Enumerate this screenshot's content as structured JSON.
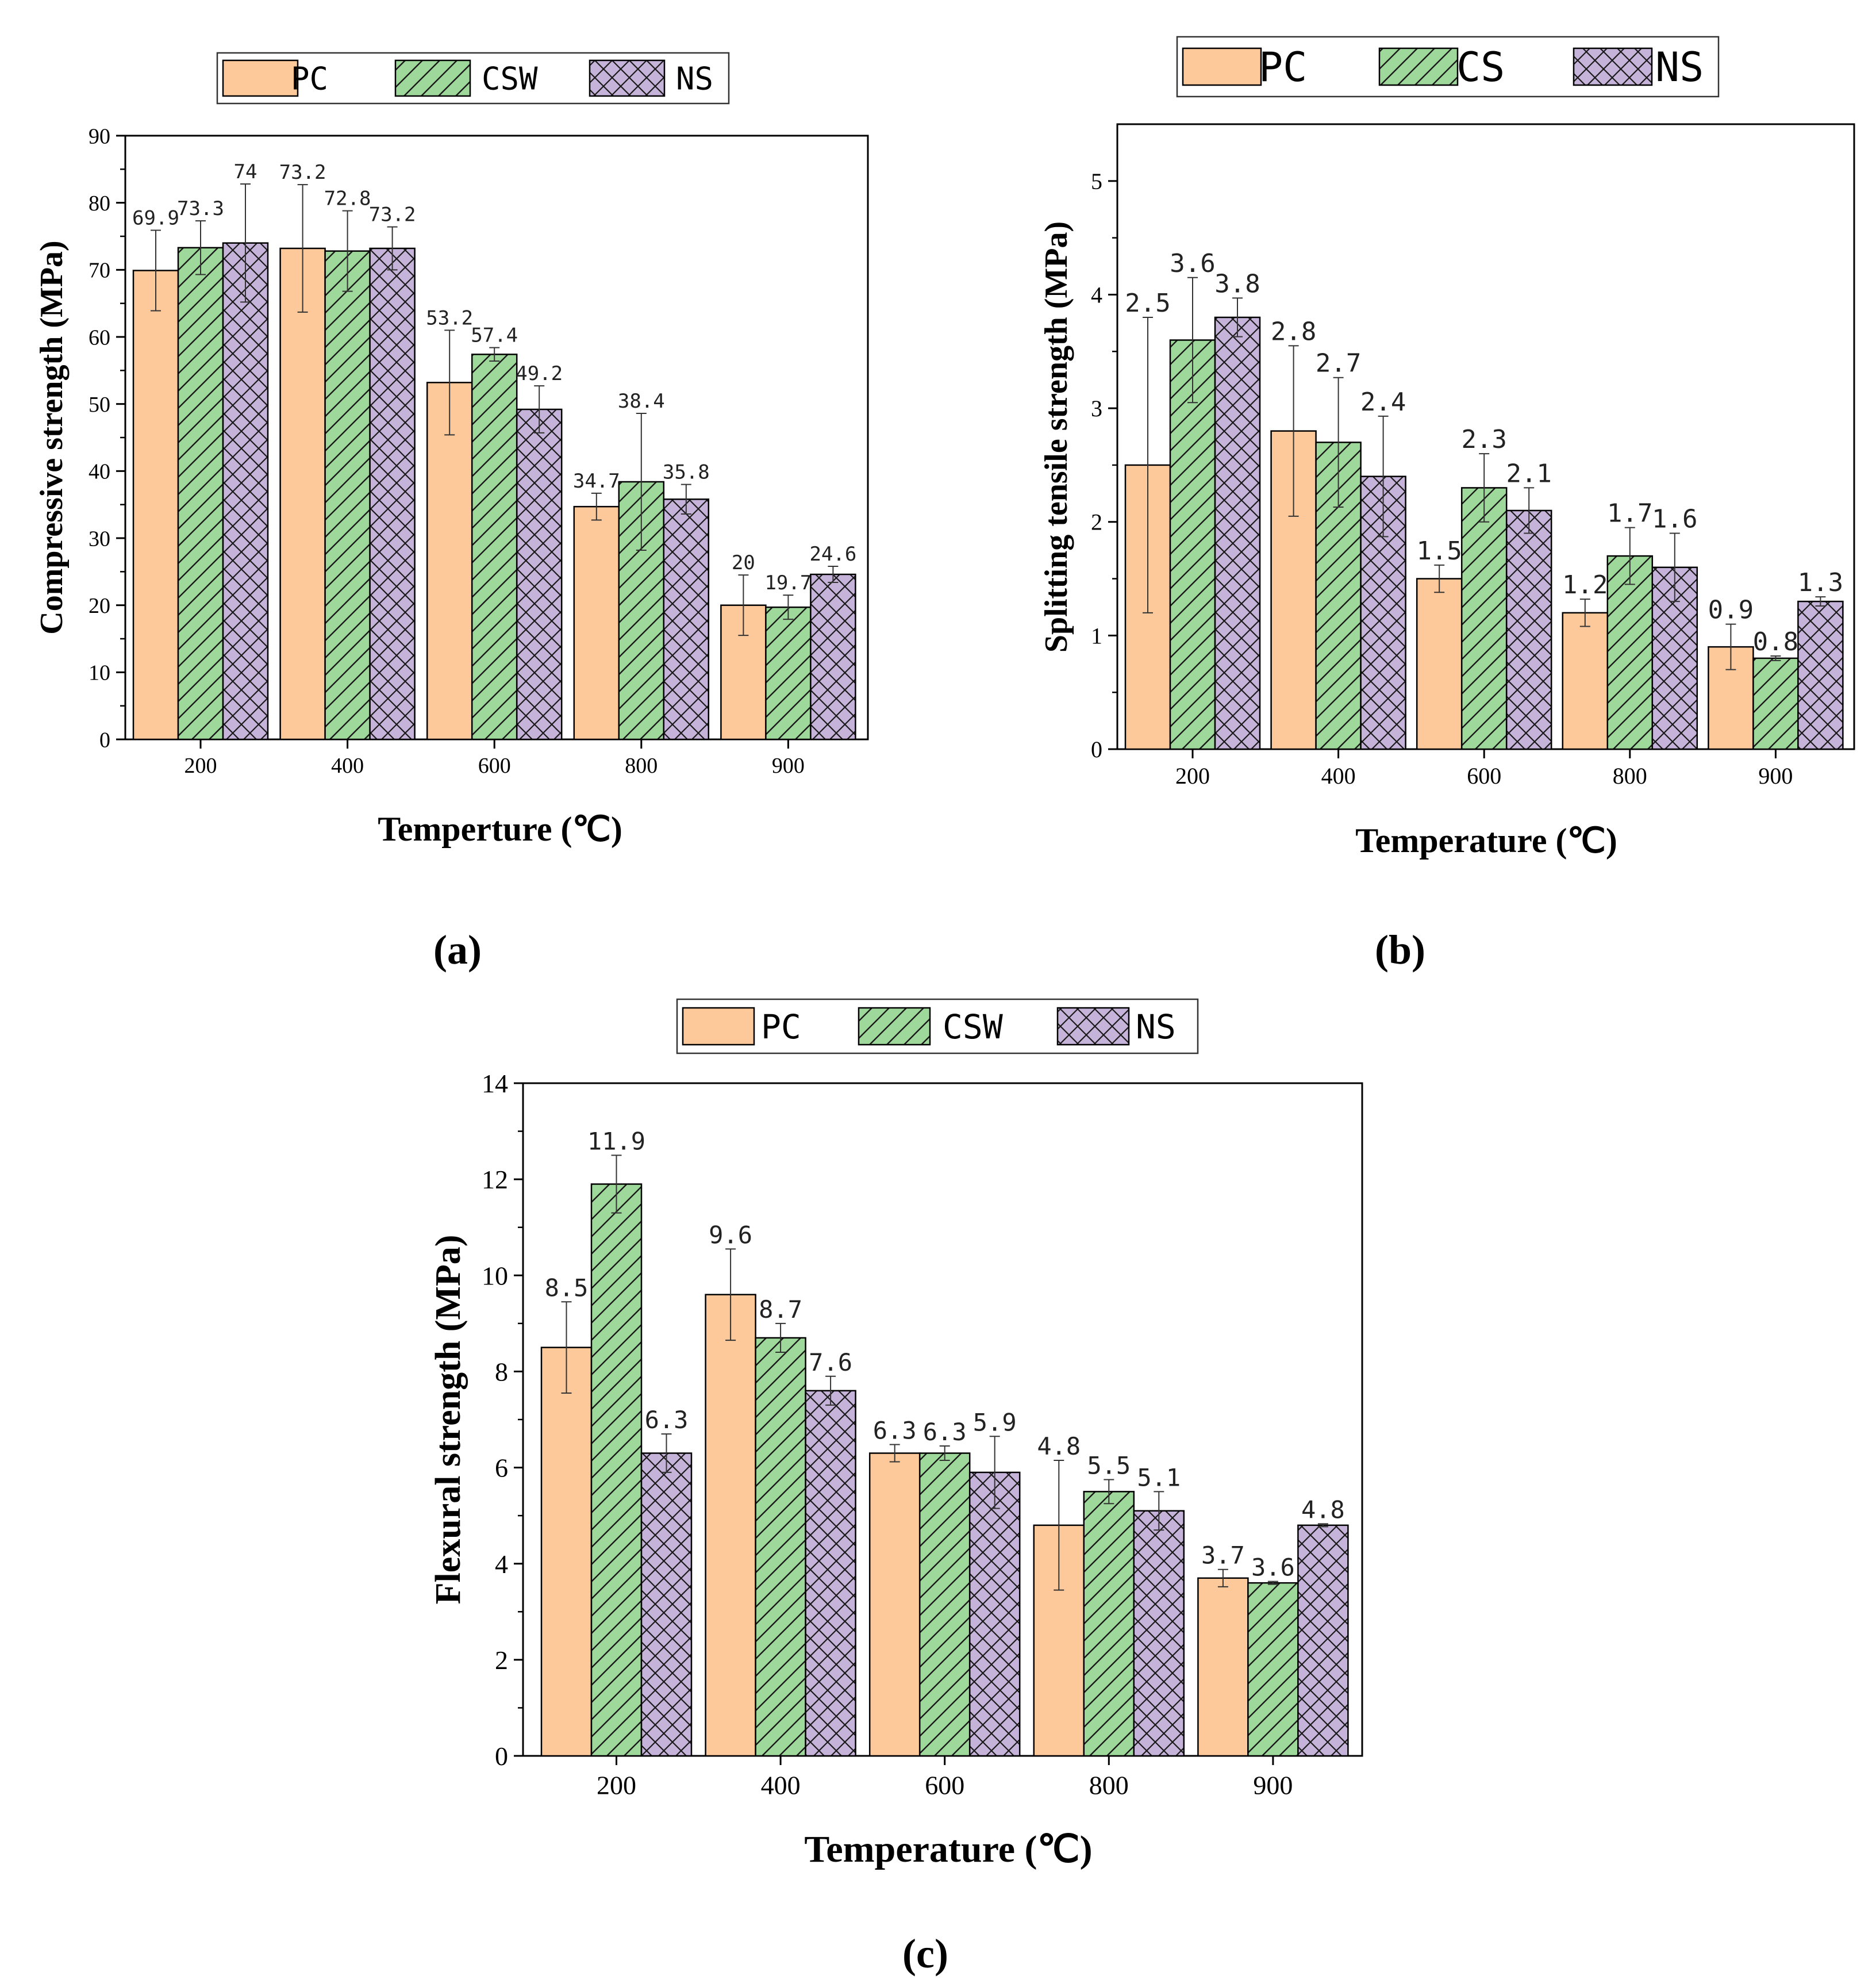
{
  "chart_data": [
    {
      "id": "a",
      "type": "bar",
      "caption": "(a)",
      "xlabel": "Temperture (℃)",
      "ylabel": "Compressive strength (MPa)",
      "ylim": [
        0,
        90
      ],
      "yticks": [
        0,
        10,
        20,
        30,
        40,
        50,
        60,
        70,
        80,
        90
      ],
      "categories": [
        "200",
        "400",
        "600",
        "800",
        "900"
      ],
      "legend_position": "top",
      "grid": false,
      "series": [
        {
          "name": "PC",
          "color": "#FDC99A",
          "pattern": "none",
          "values": [
            69.9,
            73.2,
            53.2,
            34.7,
            20
          ],
          "labels": [
            "69.9",
            "73.2",
            "53.2",
            "34.7",
            "20"
          ],
          "errors": [
            6.0,
            9.5,
            7.8,
            2.0,
            4.5
          ]
        },
        {
          "name": "CSW",
          "color": "#9ED89A",
          "pattern": "diagonal",
          "values": [
            73.3,
            72.8,
            57.4,
            38.4,
            19.7
          ],
          "labels": [
            "73.3",
            "72.8",
            "57.4",
            "38.4",
            "19.7"
          ],
          "errors": [
            4.0,
            6.0,
            1.0,
            10.2,
            1.8
          ]
        },
        {
          "name": "NS",
          "color": "#C5B3D9",
          "pattern": "crosshatch",
          "values": [
            74,
            73.2,
            49.2,
            35.8,
            24.6
          ],
          "labels": [
            "74",
            "73.2",
            "49.2",
            "35.8",
            "24.6"
          ],
          "errors": [
            8.8,
            3.2,
            3.5,
            2.2,
            1.2
          ]
        }
      ]
    },
    {
      "id": "b",
      "type": "bar",
      "caption": "(b)",
      "xlabel": "Temperature (℃)",
      "ylabel": "Splitting tensile strength (MPa)",
      "ylim": [
        0,
        5.5
      ],
      "yticks": [
        0,
        1,
        2,
        3,
        4,
        5
      ],
      "categories": [
        "200",
        "400",
        "600",
        "800",
        "900"
      ],
      "legend_position": "top",
      "grid": false,
      "series": [
        {
          "name": "PC",
          "color": "#FDC99A",
          "pattern": "none",
          "values": [
            2.5,
            2.8,
            1.5,
            1.2,
            0.9
          ],
          "labels": [
            "2.5",
            "2.8",
            "1.5",
            "1.2",
            "0.9"
          ],
          "errors": [
            1.3,
            0.75,
            0.12,
            0.12,
            0.2
          ]
        },
        {
          "name": "CS",
          "color": "#9ED89A",
          "pattern": "diagonal",
          "values": [
            3.6,
            2.7,
            2.3,
            1.7,
            0.8
          ],
          "labels": [
            "3.6",
            "2.7",
            "2.3",
            "1.7",
            "0.8"
          ],
          "errors": [
            0.55,
            0.57,
            0.3,
            0.25,
            0.02
          ]
        },
        {
          "name": "NS",
          "color": "#C5B3D9",
          "pattern": "crosshatch",
          "values": [
            3.8,
            2.4,
            2.1,
            1.6,
            1.3
          ],
          "labels": [
            "3.8",
            "2.4",
            "2.1",
            "1.6",
            "1.3"
          ],
          "errors": [
            0.17,
            0.53,
            0.2,
            0.3,
            0.04
          ]
        }
      ]
    },
    {
      "id": "c",
      "type": "bar",
      "caption": "(c)",
      "xlabel": "Temperature (℃)",
      "ylabel": "Flexural strength (MPa)",
      "ylim": [
        0,
        14
      ],
      "yticks": [
        0,
        2,
        4,
        6,
        8,
        10,
        12,
        14
      ],
      "categories": [
        "200",
        "400",
        "600",
        "800",
        "900"
      ],
      "legend_position": "top",
      "grid": false,
      "series": [
        {
          "name": "PC",
          "color": "#FDC99A",
          "pattern": "none",
          "values": [
            8.5,
            9.6,
            6.3,
            4.8,
            3.7
          ],
          "labels": [
            "8.5",
            "9.6",
            "6.3",
            "4.8",
            "3.7"
          ],
          "errors": [
            0.95,
            0.95,
            0.18,
            1.35,
            0.18
          ]
        },
        {
          "name": "CSW",
          "color": "#9ED89A",
          "pattern": "diagonal",
          "values": [
            11.9,
            8.7,
            6.3,
            5.5,
            3.6
          ],
          "labels": [
            "11.9",
            "8.7",
            "6.3",
            "5.5",
            "3.6"
          ],
          "errors": [
            0.6,
            0.3,
            0.15,
            0.25,
            0.03
          ]
        },
        {
          "name": "NS",
          "color": "#C5B3D9",
          "pattern": "crosshatch",
          "values": [
            6.3,
            7.6,
            5.9,
            5.1,
            4.8
          ],
          "labels": [
            "6.3",
            "7.6",
            "5.9",
            "5.1",
            "4.8"
          ],
          "errors": [
            0.4,
            0.3,
            0.75,
            0.4,
            0.03
          ]
        }
      ]
    }
  ]
}
